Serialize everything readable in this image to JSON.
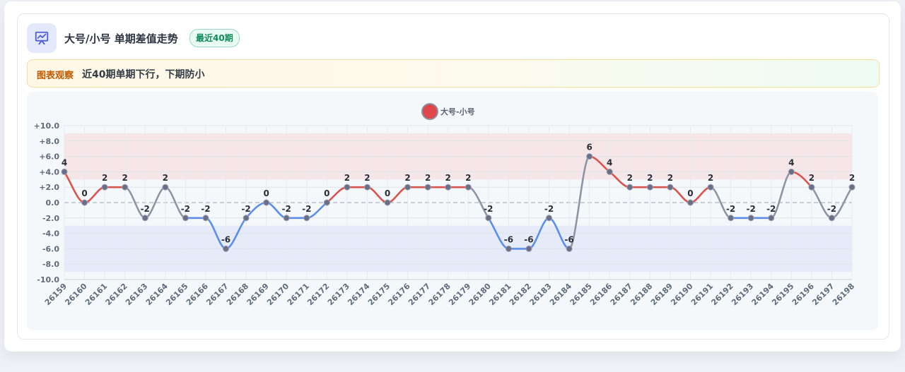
{
  "header": {
    "title": "大号/小号 单期差值走势",
    "badge": "最近40期"
  },
  "observation": {
    "tag": "图表观察",
    "text": "近40期单期下行，下期防小"
  },
  "chart_data": {
    "type": "line",
    "legend": "大号-小号",
    "legend_position": "top-center",
    "x": [
      "26159",
      "26160",
      "26161",
      "26162",
      "26163",
      "26164",
      "26165",
      "26166",
      "26167",
      "26168",
      "26169",
      "26170",
      "26171",
      "26172",
      "26173",
      "26174",
      "26175",
      "26176",
      "26177",
      "26178",
      "26179",
      "26180",
      "26181",
      "26182",
      "26183",
      "26184",
      "26185",
      "26186",
      "26187",
      "26188",
      "26189",
      "26190",
      "26191",
      "26192",
      "26193",
      "26194",
      "26195",
      "26196",
      "26197",
      "26198"
    ],
    "values": [
      4,
      0,
      2,
      2,
      -2,
      2,
      -2,
      -2,
      -6,
      -2,
      0,
      -2,
      -2,
      0,
      2,
      2,
      0,
      2,
      2,
      2,
      2,
      -2,
      -6,
      -6,
      -2,
      -6,
      6,
      4,
      2,
      2,
      2,
      0,
      2,
      -2,
      -2,
      -2,
      4,
      2,
      -2,
      2
    ],
    "ylim": [
      -10,
      10
    ],
    "yticks": [
      "+10.0",
      "+8.0",
      "+6.0",
      "+4.0",
      "+2.0",
      "0.0",
      "-2.0",
      "-4.0",
      "-6.0",
      "-8.0",
      "-10.0"
    ],
    "bands": {
      "upper": [
        3,
        9
      ],
      "lower": [
        -9,
        -3
      ]
    },
    "colors": {
      "positive": "#d9534f",
      "negative": "#5b8def",
      "neutral": "#8c96a3"
    },
    "grid": true,
    "zero_line": "dashed"
  }
}
